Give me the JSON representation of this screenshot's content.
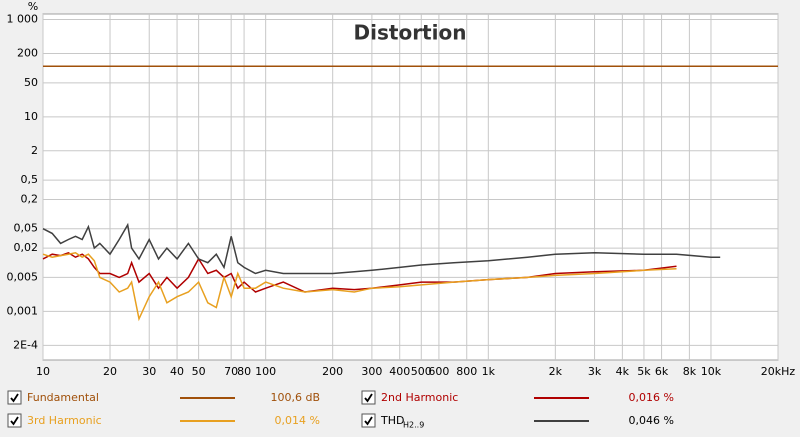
{
  "chart_data": {
    "type": "line",
    "title": "Distortion",
    "y_label": "%",
    "xscale": "log",
    "yscale": "log",
    "grid": true,
    "xlim": [
      10,
      20000
    ],
    "ylim": [
      0.0001,
      1300
    ],
    "xticks": [
      10,
      20,
      30,
      40,
      50,
      70,
      80,
      100,
      200,
      300,
      400,
      500,
      600,
      800,
      {
        "value": 1000,
        "label": "1k"
      },
      {
        "value": 2000,
        "label": "2k"
      },
      {
        "value": 3000,
        "label": "3k"
      },
      {
        "value": 4000,
        "label": "4k"
      },
      {
        "value": 5000,
        "label": "5k"
      },
      {
        "value": 6000,
        "label": "6k"
      },
      {
        "value": 8000,
        "label": "8k"
      },
      {
        "value": 10000,
        "label": "10k"
      },
      {
        "value": 20000,
        "label": "20kHz"
      }
    ],
    "yticks": [
      {
        "value": 1000,
        "label": "1 000"
      },
      200,
      50,
      10,
      2,
      {
        "value": 0.5,
        "label": "0,5"
      },
      {
        "value": 0.2,
        "label": "0,2"
      },
      {
        "value": 0.05,
        "label": "0,05"
      },
      {
        "value": 0.02,
        "label": "0,02"
      },
      {
        "value": 0.005,
        "label": "0,005"
      },
      {
        "value": 0.001,
        "label": "0,001"
      },
      {
        "value": 0.0002,
        "label": "2E-4"
      }
    ],
    "x": [
      10,
      11,
      12,
      13,
      14,
      15,
      16,
      17,
      18,
      20,
      22,
      24,
      25,
      27,
      30,
      33,
      36,
      40,
      45,
      50,
      55,
      60,
      65,
      70,
      75,
      80,
      90,
      100,
      120,
      150,
      200,
      250,
      300,
      400,
      500,
      700,
      1000,
      1500,
      2000,
      3000,
      5000,
      7000,
      10000,
      11000
    ],
    "series": [
      {
        "name": "Fundamental",
        "legend_value": "100,6 dB",
        "color": "#a0500a",
        "x": [
          10,
          20000
        ],
        "values": [
          110,
          110
        ]
      },
      {
        "name": "2nd Harmonic",
        "legend_value": "0,016 %",
        "color": "#b00000",
        "values": [
          0.012,
          0.015,
          0.014,
          0.016,
          0.013,
          0.015,
          0.012,
          0.008,
          0.006,
          0.006,
          0.005,
          0.006,
          0.01,
          0.004,
          0.006,
          0.003,
          0.005,
          0.003,
          0.005,
          0.012,
          0.006,
          0.007,
          0.005,
          0.006,
          0.003,
          0.004,
          0.0025,
          0.003,
          0.004,
          0.0025,
          0.003,
          0.0028,
          0.003,
          0.0035,
          0.004,
          0.004,
          0.0045,
          0.005,
          0.006,
          0.0065,
          0.007,
          0.0085,
          null,
          null
        ]
      },
      {
        "name": "3rd Harmonic",
        "legend_value": "0,014 %",
        "color": "#e8a020",
        "values": [
          0.015,
          0.013,
          0.014,
          0.015,
          0.016,
          0.013,
          0.015,
          0.011,
          0.005,
          0.004,
          0.0025,
          0.003,
          0.004,
          0.0007,
          0.002,
          0.004,
          0.0015,
          0.002,
          0.0025,
          0.004,
          0.0015,
          0.0012,
          0.005,
          0.002,
          0.006,
          0.003,
          0.003,
          0.004,
          0.003,
          0.0025,
          0.0028,
          0.0025,
          0.003,
          0.0032,
          0.0035,
          0.004,
          0.0045,
          0.005,
          0.0055,
          0.006,
          0.007,
          0.0075,
          null,
          null
        ]
      },
      {
        "name": "THD",
        "name_sub": "H2..9",
        "legend_value": "0,046 %",
        "color": "#404040",
        "values": [
          0.05,
          0.04,
          0.025,
          0.03,
          0.035,
          0.03,
          0.055,
          0.02,
          0.025,
          0.015,
          0.03,
          0.06,
          0.02,
          0.012,
          0.03,
          0.012,
          0.02,
          0.012,
          0.025,
          0.012,
          0.01,
          0.015,
          0.008,
          0.035,
          0.01,
          0.008,
          0.006,
          0.007,
          0.006,
          0.006,
          0.006,
          0.0065,
          0.007,
          0.008,
          0.009,
          0.01,
          0.011,
          0.013,
          0.015,
          0.016,
          0.015,
          0.015,
          0.013,
          0.013
        ]
      }
    ]
  }
}
